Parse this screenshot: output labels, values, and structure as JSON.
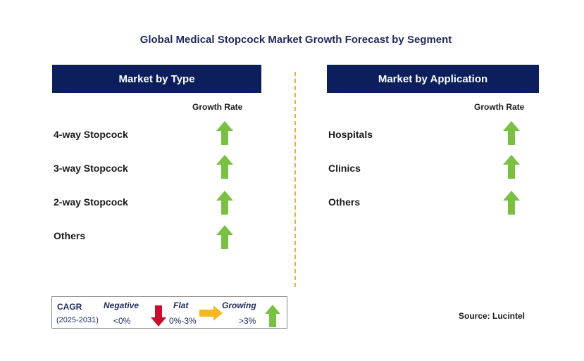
{
  "title": "Global Medical Stopcock Market Growth Forecast by Segment",
  "left_panel": {
    "header": "Market by Type",
    "column_header": "Growth Rate",
    "rows": [
      {
        "label": "4-way Stopcock",
        "trend": "growing"
      },
      {
        "label": "3-way Stopcock",
        "trend": "growing"
      },
      {
        "label": "2-way Stopcock",
        "trend": "growing"
      },
      {
        "label": "Others",
        "trend": "growing"
      }
    ]
  },
  "right_panel": {
    "header": "Market by Application",
    "column_header": "Growth Rate",
    "rows": [
      {
        "label": "Hospitals",
        "trend": "growing"
      },
      {
        "label": "Clinics",
        "trend": "growing"
      },
      {
        "label": "Others",
        "trend": "growing"
      }
    ]
  },
  "legend": {
    "cagr_label": "CAGR",
    "period": "(2025-2031)",
    "negative_label": "Negative",
    "negative_range": "<0%",
    "flat_label": "Flat",
    "flat_range": "0%-3%",
    "growing_label": "Growing",
    "growing_range": ">3%"
  },
  "source": "Source: Lucintel",
  "colors": {
    "header_bg": "#0c1f5c",
    "growing_arrow": "#7ac143",
    "negative_arrow": "#c8102e",
    "flat_arrow": "#f5b820",
    "divider": "#f0b030"
  }
}
